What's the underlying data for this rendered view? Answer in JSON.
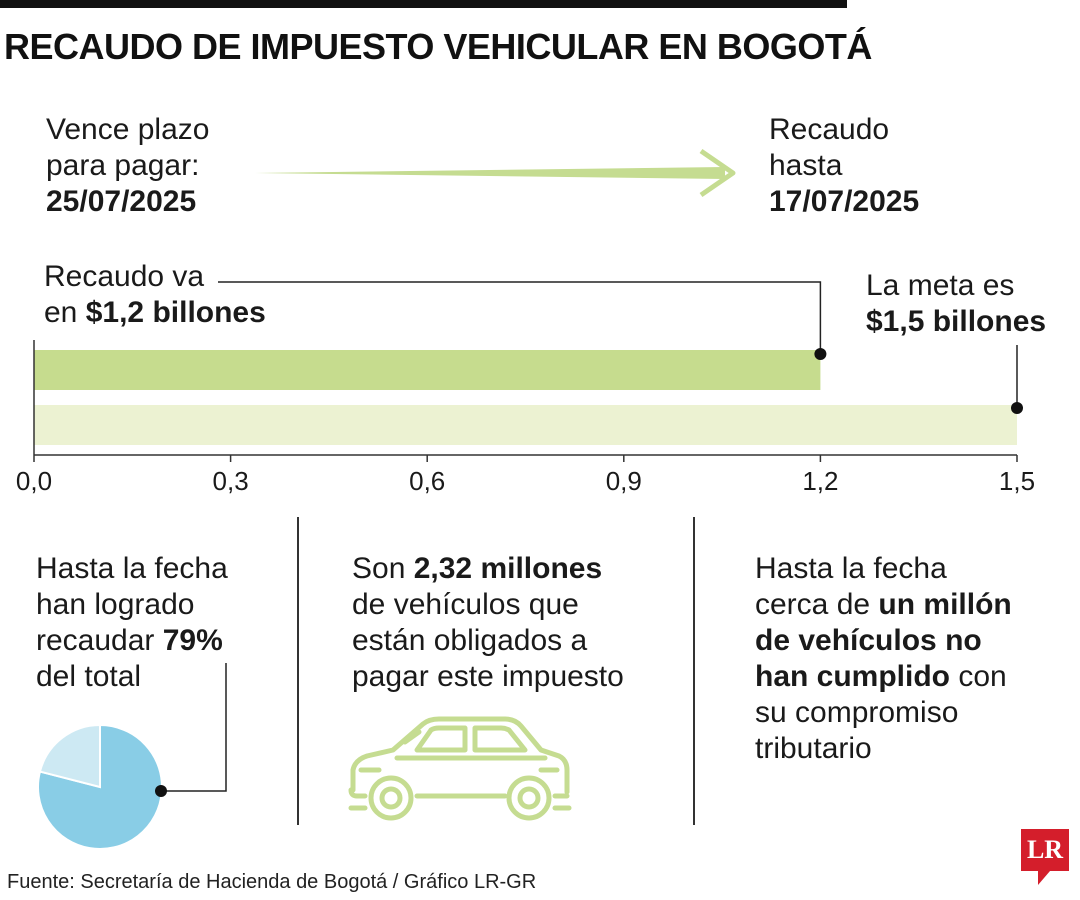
{
  "title": "RECAUDO DE IMPUESTO VEHICULAR EN BOGOTÁ",
  "timeline": {
    "left_line1": "Vence plazo",
    "left_line2": "para pagar:",
    "left_date": "25/07/2025",
    "right_line1": "Recaudo",
    "right_line2": "hasta",
    "right_date": "17/07/2025",
    "arrow_color": "#c5dc91"
  },
  "recaudo_callout": {
    "line1": "Recaudo va",
    "prefix": "en ",
    "value": "$1,2 billones"
  },
  "meta_callout": {
    "line1": "La meta es",
    "value": "$1,5 billones"
  },
  "chart_data": {
    "type": "bar",
    "orientation": "horizontal",
    "bars": [
      {
        "label": "Recaudo",
        "value": 1.2,
        "color": "#c6dc8e"
      },
      {
        "label": "Meta",
        "value": 1.5,
        "color": "#ecf2d2"
      }
    ],
    "xlim": [
      0,
      1.5
    ],
    "x_ticks": [
      "0,0",
      "0,3",
      "0,6",
      "0,9",
      "1,2",
      "1,5"
    ]
  },
  "stats": {
    "s1_line1": "Hasta la fecha",
    "s1_line2": "han logrado",
    "s1_line3_pre": "recaudar ",
    "s1_pct": "79%",
    "s1_line4": "del total",
    "pie_percent": 79,
    "pie_color_main": "#89cde6",
    "pie_color_rest": "#cde9f3",
    "s2_pre": "Son ",
    "s2_bold": "2,32 millones",
    "s2_line2": "de vehículos que",
    "s2_line3": "están obligados a",
    "s2_line4": "pagar este impuesto",
    "s3_line1": "Hasta la fecha",
    "s3_line2_pre": "cerca de ",
    "s3_line2_bold": "un millón",
    "s3_line3_bold": "de vehículos no",
    "s3_line4_bold": "han cumplido",
    "s3_line4_post": " con",
    "s3_line5": "su compromiso",
    "s3_line6": "tributario"
  },
  "icons": {
    "car": "car-icon",
    "pie": "pie-chart"
  },
  "source": "Fuente: Secretaría de Hacienda de Bogotá / Gráfico LR-GR",
  "logo": "LR"
}
